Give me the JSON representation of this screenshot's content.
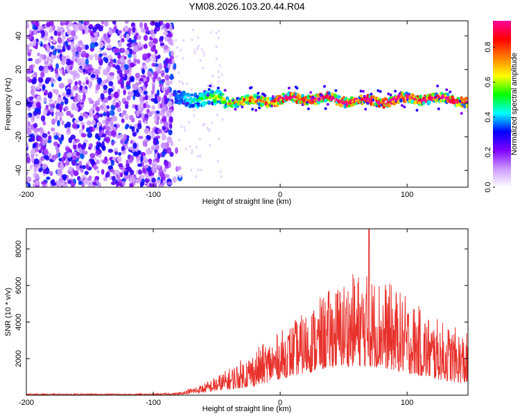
{
  "figure_title": "YM08.2026.103.20.44.R04",
  "chart_data": [
    {
      "type": "heatmap",
      "name": "spectrogram",
      "title": "YM08.2026.103.20.44.R04",
      "xlabel": "Height of straight line (km)",
      "ylabel": "Frequency (Hz)",
      "xlim": [
        -200,
        148
      ],
      "ylim": [
        -50,
        49
      ],
      "xticks": [
        -200,
        -100,
        0,
        100
      ],
      "yticks": [
        -40,
        -20,
        0,
        20,
        40
      ],
      "colorbar": {
        "label": "Normalized spectral amplitude",
        "range": [
          0.0,
          0.95
        ],
        "ticks": [
          "0.0",
          "0.2",
          "0.4",
          "0.6",
          "0.8"
        ],
        "colors": [
          "#ffffff",
          "#cc99ff",
          "#8000ff",
          "#0000ff",
          "#00ffff",
          "#00ff00",
          "#ffff00",
          "#ff8000",
          "#ff0000",
          "#ff0099"
        ]
      },
      "description_regions": [
        {
          "x_range": [
            -200,
            -85
          ],
          "pattern": "broadband noise across all frequencies"
        },
        {
          "x_range": [
            -85,
            148
          ],
          "pattern": "narrow band near 0 to 3 Hz with peak amplitude"
        }
      ],
      "band_center_hz": 2,
      "noise_cutoff_km": -85
    },
    {
      "type": "line",
      "name": "snr",
      "xlabel": "Height of straight line (km)",
      "ylabel": "SNR (10 * v/v)",
      "xlim": [
        -200,
        148
      ],
      "ylim": [
        0,
        9100
      ],
      "xticks": [
        -200,
        -100,
        0,
        100
      ],
      "yticks": [
        2000,
        4000,
        6000,
        8000
      ],
      "color": "#e8312b",
      "envelope": [
        {
          "x": -200,
          "base": 20,
          "amp": 60
        },
        {
          "x": -100,
          "base": 20,
          "amp": 60
        },
        {
          "x": -80,
          "base": 30,
          "amp": 120
        },
        {
          "x": -60,
          "base": 150,
          "amp": 500
        },
        {
          "x": -40,
          "base": 300,
          "amp": 1200
        },
        {
          "x": -20,
          "base": 500,
          "amp": 2000
        },
        {
          "x": 0,
          "base": 900,
          "amp": 2600
        },
        {
          "x": 20,
          "base": 1200,
          "amp": 3400
        },
        {
          "x": 40,
          "base": 1500,
          "amp": 4400
        },
        {
          "x": 60,
          "base": 1600,
          "amp": 5200
        },
        {
          "x": 80,
          "base": 1500,
          "amp": 5000
        },
        {
          "x": 100,
          "base": 1200,
          "amp": 4200
        },
        {
          "x": 120,
          "base": 900,
          "amp": 3400
        },
        {
          "x": 148,
          "base": 600,
          "amp": 2800
        }
      ],
      "peak": {
        "x": 70,
        "y": 9100
      }
    }
  ]
}
